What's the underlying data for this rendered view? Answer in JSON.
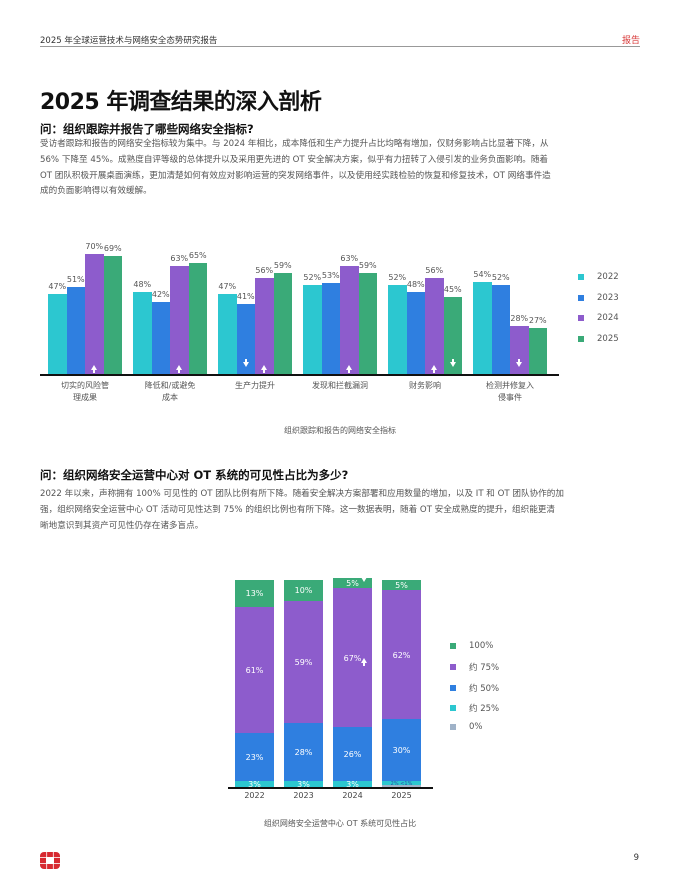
{
  "header": {
    "title": "2025 年全球运营技术与网络安全态势研究报告",
    "tag": "报告"
  },
  "page_title": "2025 年调查结果的深入剖析",
  "section1": {
    "question": "问：组织跟踪并报告了哪些网络安全指标?",
    "paragraph_lines": [
      "受访者跟踪和报告的网络安全指标较为集中。与 2024 年相比，成本降低和生产力提升占比均略有增加，仅财务影响占比显著下降，从",
      "56% 下降至 45%。成熟度自评等级的总体提升以及采用更先进的 OT 安全解决方案，似乎有力扭转了入侵引发的业务负面影响。随着",
      "OT 团队积极开展桌面演练，更加清楚如何有效应对影响运营的突发网络事件，以及使用经实践检验的恢复和修复技术，OT 网络事件造",
      "成的负面影响得以有效缓解。"
    ]
  },
  "section2": {
    "question": "问：组织网络安全运营中心对 OT 系统的可见性占比为多少?",
    "paragraph_lines": [
      "2022 年以来，声称拥有 100% 可见性的 OT 团队比例有所下降。随着安全解决方案部署和应用数量的增加，以及 IT 和 OT 团队协作的加",
      "强，组织网络安全运营中心 OT 活动可见性达到 75% 的组织比例也有所下降。这一数据表明，随着 OT 安全成熟度的提升，组织能更清",
      "晰地意识到其资产可见性仍存在诸多盲点。"
    ]
  },
  "chart_data": [
    {
      "type": "bar",
      "title": "组织跟踪和报告的网络安全指标",
      "xlabel": "",
      "ylabel": "",
      "ylim": [
        0,
        100
      ],
      "grid": false,
      "legend_position": "right",
      "categories": [
        "切实的风险管理成果",
        "降低和/或避免成本",
        "生产力提升",
        "发现和拦截漏洞",
        "财务影响",
        "检测并修复入侵事件"
      ],
      "category_lines": [
        [
          "切实的风险管",
          "理成果"
        ],
        [
          "降低和/或避免",
          "成本"
        ],
        [
          "生产力提升"
        ],
        [
          "发现和拦截漏洞"
        ],
        [
          "财务影响"
        ],
        [
          "检测并修复入",
          "侵事件"
        ]
      ],
      "series": [
        {
          "name": "2022",
          "color": "#2cc7d0",
          "values": [
            47,
            48,
            47,
            52,
            52,
            54
          ]
        },
        {
          "name": "2023",
          "color": "#2f7fe0",
          "values": [
            51,
            42,
            41,
            53,
            48,
            52
          ]
        },
        {
          "name": "2024",
          "color": "#8d5ccc",
          "values": [
            70,
            63,
            56,
            63,
            56,
            28
          ]
        },
        {
          "name": "2025",
          "color": "#3aaa78",
          "values": [
            69,
            65,
            59,
            59,
            45,
            27
          ]
        }
      ],
      "annotations": [
        {
          "category": 0,
          "series": "2024",
          "arrow": "up"
        },
        {
          "category": 1,
          "series": "2024",
          "arrow": "up"
        },
        {
          "category": 2,
          "series": "2023",
          "arrow": "down"
        },
        {
          "category": 2,
          "series": "2024",
          "arrow": "up"
        },
        {
          "category": 3,
          "series": "2024",
          "arrow": "up"
        },
        {
          "category": 4,
          "series": "2024",
          "arrow": "up"
        },
        {
          "category": 4,
          "series": "2025",
          "arrow": "down"
        },
        {
          "category": 5,
          "series": "2024",
          "arrow": "down"
        }
      ]
    },
    {
      "type": "bar",
      "stacked": true,
      "title": "组织网络安全运营中心 OT 系统可见性占比",
      "xlabel": "",
      "ylabel": "",
      "ylim": [
        0,
        100
      ],
      "grid": false,
      "legend_position": "right",
      "categories": [
        "2022",
        "2023",
        "2024",
        "2025"
      ],
      "series": [
        {
          "name": "0%",
          "color": "#9fb2c8",
          "values": [
            0,
            0,
            0,
            1
          ],
          "labels": [
            "",
            "",
            "",
            "<1%"
          ]
        },
        {
          "name": "约 25%",
          "color": "#2cc7d0",
          "values": [
            3,
            3,
            3,
            2
          ],
          "labels": [
            "3%",
            "3%",
            "3%",
            "2%"
          ]
        },
        {
          "name": "约 50%",
          "color": "#2f7fe0",
          "values": [
            23,
            28,
            26,
            30
          ],
          "labels": [
            "23%",
            "28%",
            "26%",
            "30%"
          ]
        },
        {
          "name": "约 75%",
          "color": "#8d5ccc",
          "values": [
            61,
            59,
            67,
            62
          ],
          "labels": [
            "61%",
            "59%",
            "67%",
            "62%"
          ]
        },
        {
          "name": "100%",
          "color": "#3aaa78",
          "values": [
            13,
            10,
            5,
            5
          ],
          "labels": [
            "13%",
            "10%",
            "5%",
            "5%"
          ]
        }
      ],
      "legend_order": [
        "100%",
        "约 75%",
        "约 50%",
        "约 25%",
        "0%"
      ],
      "annotations": [
        {
          "category": 2,
          "series": "100%",
          "arrow": "down"
        },
        {
          "category": 2,
          "series": "约 75%",
          "arrow": "up"
        }
      ]
    }
  ],
  "footer": {
    "logo": "fortinet-logo-icon",
    "page_number": "9"
  }
}
